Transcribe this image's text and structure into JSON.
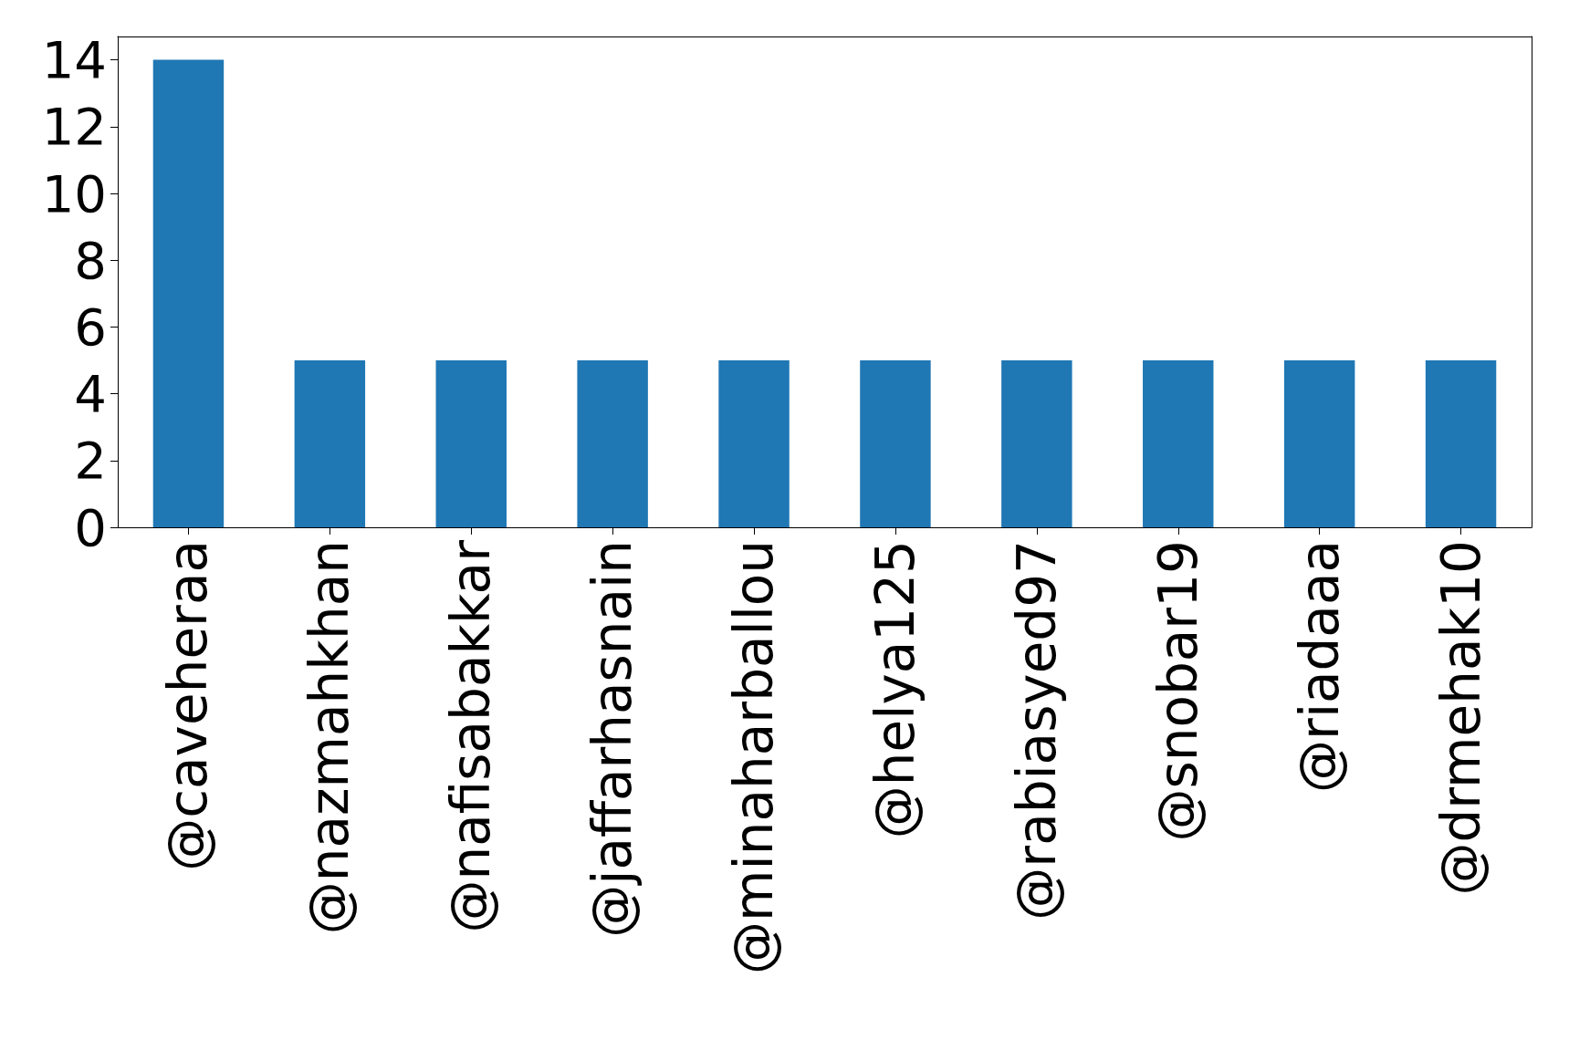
{
  "chart_data": {
    "type": "bar",
    "categories": [
      "@caveheraa",
      "@nazmahkhan",
      "@nafisabakkar",
      "@jaffarhasnain",
      "@minaharballou",
      "@helya125",
      "@rabiasyed97",
      "@snobar19",
      "@riadaaa",
      "@drmehak10"
    ],
    "values": [
      14,
      5,
      5,
      5,
      5,
      5,
      5,
      5,
      5,
      5
    ],
    "color": "#1f77b4",
    "ylim": [
      0,
      14.7
    ],
    "yticks": [
      0,
      2,
      4,
      6,
      8,
      10,
      12,
      14
    ],
    "grid": false
  }
}
